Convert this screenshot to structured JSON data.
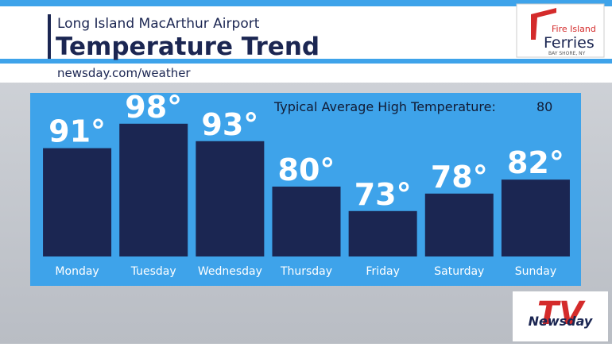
{
  "chart_data": {
    "type": "bar",
    "title": "Temperature Trend",
    "subtitle": "Long Island MacArthur Airport",
    "source": "newsday.com/weather",
    "annotation": {
      "label": "Typical Average High Temperature:",
      "value": 80
    },
    "categories": [
      "Monday",
      "Tuesday",
      "Wednesday",
      "Thursday",
      "Friday",
      "Saturday",
      "Sunday"
    ],
    "values": [
      91,
      98,
      93,
      80,
      73,
      78,
      82
    ],
    "value_labels": [
      "91°",
      "98°",
      "93°",
      "80°",
      "73°",
      "78°",
      "82°"
    ],
    "color": "#1b2652",
    "ylim": [
      60,
      100
    ]
  },
  "logos": {
    "sponsor": {
      "line1": "Fire Island",
      "line2": "Ferries",
      "line3": "BAY SHORE, NY"
    },
    "brand": {
      "mark": "TV",
      "name": "Newsday"
    }
  }
}
